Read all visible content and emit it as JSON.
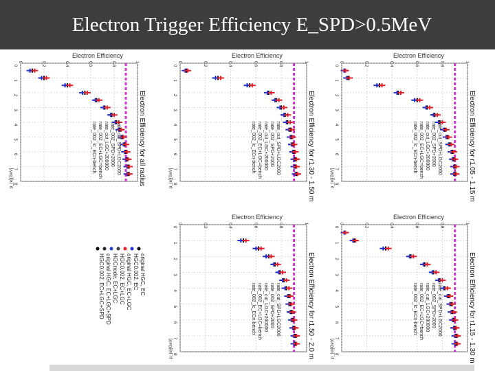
{
  "title": "Electron Trigger Efficiency E_SPD>0.5MeV",
  "colors": {
    "title_bg": "#3d3d3d",
    "title_fg": "#ffffff",
    "threshold": "#cc33cc",
    "series": [
      "#000000",
      "#1f2fd0",
      "#e0202a",
      "#3a3a3a",
      "#2040c0",
      "#202020"
    ]
  },
  "legend_panel": {
    "entries": [
      "original HGC, EC",
      "HGC0.002, EC",
      "original HGC, EC+LGC",
      "HGC0.002, EC+LGC",
      "HGCnode, EC+LGC",
      "original HGC, EC+LGC+SPD",
      "HGC0.002, EC+LGC+SPD"
    ]
  },
  "chart_data": [
    {
      "type": "scatter",
      "title": "Electron Efficiency",
      "ylabel": "Electron Efficiency for all radius",
      "xlabel": "p_{e}[GeV]",
      "xlim": [
        0,
        8
      ],
      "ylim": [
        0,
        1
      ],
      "y_ticks": [
        "0",
        "0.2",
        "0.4",
        "0.6",
        "0.8",
        "1"
      ],
      "x_ticks": [
        "0",
        "1",
        "2",
        "3",
        "4",
        "5",
        "6",
        "7",
        "8"
      ],
      "threshold": 0.9,
      "legend": [
        "rate_002_lc_ECn-bench",
        "rate_002_EC+LGC=bench",
        "rate_cut_LGC+200000",
        "rate_002_SPD+2000",
        "rate_cut_SPD+LGC2000"
      ],
      "x": [
        0.5,
        1.0,
        1.5,
        2.0,
        2.5,
        3.0,
        3.5,
        4.0,
        4.5,
        5.0,
        5.5,
        6.0,
        6.5,
        7.0,
        7.5
      ],
      "series": [
        {
          "values": [
            0.1,
            0.2,
            0.4,
            0.55,
            0.65,
            0.72,
            0.78,
            0.82,
            0.85,
            0.87,
            0.89,
            0.9,
            0.91,
            0.92,
            0.92
          ]
        },
        {
          "values": [
            0.08,
            0.18,
            0.38,
            0.53,
            0.64,
            0.71,
            0.77,
            0.81,
            0.84,
            0.86,
            0.88,
            0.89,
            0.9,
            0.91,
            0.91
          ]
        },
        {
          "values": [
            0.12,
            0.22,
            0.42,
            0.57,
            0.67,
            0.74,
            0.8,
            0.84,
            0.86,
            0.88,
            0.9,
            0.91,
            0.92,
            0.93,
            0.93
          ]
        }
      ]
    },
    {
      "type": "scatter",
      "title": "Electron Efficiency",
      "ylabel": "Electron Efficiency for r1.30 - 1.50 m",
      "xlabel": "p_{e}[GeV]",
      "xlim": [
        0,
        8
      ],
      "ylim": [
        0,
        1
      ],
      "y_ticks": [
        "0",
        "0.2",
        "0.4",
        "0.6",
        "0.8",
        "1"
      ],
      "x_ticks": [
        "0",
        "1",
        "2",
        "3",
        "4",
        "5",
        "6",
        "7",
        "8"
      ],
      "threshold": 0.9,
      "legend": [
        "rate_002_lc_ECn-bench",
        "rate_002_EC+LGC=bench",
        "rate_cut_LGC+200000",
        "rate_002_SPD+2000",
        "rate_cut_SPD+LGC2000"
      ],
      "x": [
        0.5,
        1.0,
        1.5,
        2.0,
        2.5,
        3.0,
        3.5,
        4.0,
        4.5,
        5.0,
        5.5,
        6.0,
        6.5,
        7.0,
        7.5
      ],
      "series": [
        {
          "values": [
            0.05,
            0.3,
            0.55,
            0.7,
            0.76,
            0.8,
            0.83,
            0.85,
            0.87,
            0.88,
            0.89,
            0.9,
            0.91,
            0.91,
            0.92
          ]
        },
        {
          "values": [
            0.04,
            0.28,
            0.53,
            0.69,
            0.75,
            0.79,
            0.82,
            0.84,
            0.86,
            0.87,
            0.88,
            0.89,
            0.9,
            0.9,
            0.91
          ]
        },
        {
          "values": [
            0.06,
            0.32,
            0.57,
            0.72,
            0.78,
            0.82,
            0.85,
            0.87,
            0.88,
            0.89,
            0.9,
            0.91,
            0.92,
            0.92,
            0.93
          ]
        }
      ]
    },
    {
      "type": "scatter",
      "title": "Electron Efficiency",
      "ylabel": "Electron Efficiency for r1.05 - 1.15 m",
      "xlabel": "p_{e}[GeV]",
      "xlim": [
        0,
        8
      ],
      "ylim": [
        0,
        1
      ],
      "y_ticks": [
        "0",
        "0.2",
        "0.4",
        "0.6",
        "0.8",
        "1"
      ],
      "x_ticks": [
        "0",
        "1",
        "2",
        "3",
        "4",
        "5",
        "6",
        "7",
        "8"
      ],
      "threshold": 0.9,
      "legend": [
        "rate_002_lc_ECn-bench",
        "rate_002_EC+LGC=bench",
        "rate_cut_LGC+200000",
        "rate_002_SPD+2000",
        "rate_cut_SPD+LGC2000"
      ],
      "x": [
        0.5,
        1.0,
        1.5,
        2.0,
        2.5,
        3.0,
        3.5,
        4.0,
        4.5,
        5.0,
        5.5,
        6.0,
        6.5,
        7.0,
        7.5
      ],
      "series": [
        {
          "values": [
            0.02,
            0.05,
            0.3,
            0.45,
            0.6,
            0.68,
            0.74,
            0.78,
            0.82,
            0.84,
            0.86,
            0.88,
            0.89,
            0.9,
            0.9
          ]
        },
        {
          "values": [
            0.02,
            0.04,
            0.28,
            0.44,
            0.58,
            0.67,
            0.73,
            0.77,
            0.81,
            0.83,
            0.85,
            0.87,
            0.88,
            0.89,
            0.89
          ]
        },
        {
          "values": [
            0.03,
            0.06,
            0.32,
            0.47,
            0.62,
            0.7,
            0.76,
            0.8,
            0.83,
            0.85,
            0.87,
            0.89,
            0.9,
            0.91,
            0.91
          ]
        }
      ]
    },
    {
      "type": "scatter",
      "title": "Electron Efficiency",
      "ylabel": "Electron Efficiency for r1.50 - 2.0 m",
      "xlabel": "p_{e}[GeV]",
      "xlim": [
        0,
        8
      ],
      "ylim": [
        0,
        1
      ],
      "y_ticks": [
        "0",
        "0.2",
        "0.4",
        "0.6",
        "0.8",
        "1"
      ],
      "x_ticks": [
        "0",
        "1",
        "2",
        "3",
        "4",
        "5",
        "6",
        "7",
        "8"
      ],
      "threshold": 0.9,
      "legend": [
        "rate_002_lc_ECn-bench",
        "rate_002_EC+LGC=bench",
        "rate_cut_LGC+200000",
        "rate_002_SPD+2000",
        "rate_cut_SPD+LGC2000"
      ],
      "x": [
        1.0,
        1.5,
        2.0,
        2.5,
        3.0,
        3.5,
        4.0,
        4.5,
        5.0,
        5.5,
        6.0,
        6.5,
        7.0,
        7.5
      ],
      "series": [
        {
          "values": [
            0.5,
            0.62,
            0.7,
            0.75,
            0.79,
            0.82,
            0.84,
            0.86,
            0.87,
            0.88,
            0.89,
            0.9,
            0.91,
            0.91
          ]
        },
        {
          "values": [
            0.48,
            0.6,
            0.68,
            0.74,
            0.78,
            0.81,
            0.83,
            0.85,
            0.86,
            0.87,
            0.88,
            0.89,
            0.9,
            0.9
          ]
        },
        {
          "values": [
            0.52,
            0.64,
            0.72,
            0.77,
            0.81,
            0.84,
            0.86,
            0.87,
            0.88,
            0.89,
            0.9,
            0.91,
            0.92,
            0.92
          ]
        }
      ]
    },
    {
      "type": "scatter",
      "title": "Electron Efficiency",
      "ylabel": "Electron Efficiency for r1.15 - 1.30 m",
      "xlabel": "p_{e}[GeV]",
      "xlim": [
        0,
        8
      ],
      "ylim": [
        0,
        1
      ],
      "y_ticks": [
        "0",
        "0.2",
        "0.4",
        "0.6",
        "0.8",
        "1"
      ],
      "x_ticks": [
        "0",
        "1",
        "2",
        "3",
        "4",
        "5",
        "6",
        "7",
        "8"
      ],
      "threshold": 0.9,
      "legend": [
        "rate_002_lc_ECn-bench",
        "rate_002_EC+LGC=bench",
        "rate_cut_LGC+200000",
        "rate_002_SPD+2000",
        "rate_cut_SPD+LGC2000"
      ],
      "x": [
        0.5,
        1.0,
        1.5,
        2.0,
        2.5,
        3.0,
        3.5,
        4.0,
        4.5,
        5.0,
        5.5,
        6.0,
        6.5,
        7.0,
        7.5
      ],
      "series": [
        {
          "values": [
            0.02,
            0.1,
            0.35,
            0.55,
            0.66,
            0.73,
            0.78,
            0.82,
            0.85,
            0.87,
            0.88,
            0.89,
            0.9,
            0.91,
            0.91
          ]
        },
        {
          "values": [
            0.02,
            0.09,
            0.33,
            0.54,
            0.65,
            0.72,
            0.77,
            0.81,
            0.84,
            0.86,
            0.87,
            0.88,
            0.89,
            0.9,
            0.9
          ]
        },
        {
          "values": [
            0.03,
            0.11,
            0.37,
            0.57,
            0.68,
            0.75,
            0.8,
            0.84,
            0.86,
            0.88,
            0.89,
            0.9,
            0.91,
            0.92,
            0.92
          ]
        }
      ]
    }
  ]
}
